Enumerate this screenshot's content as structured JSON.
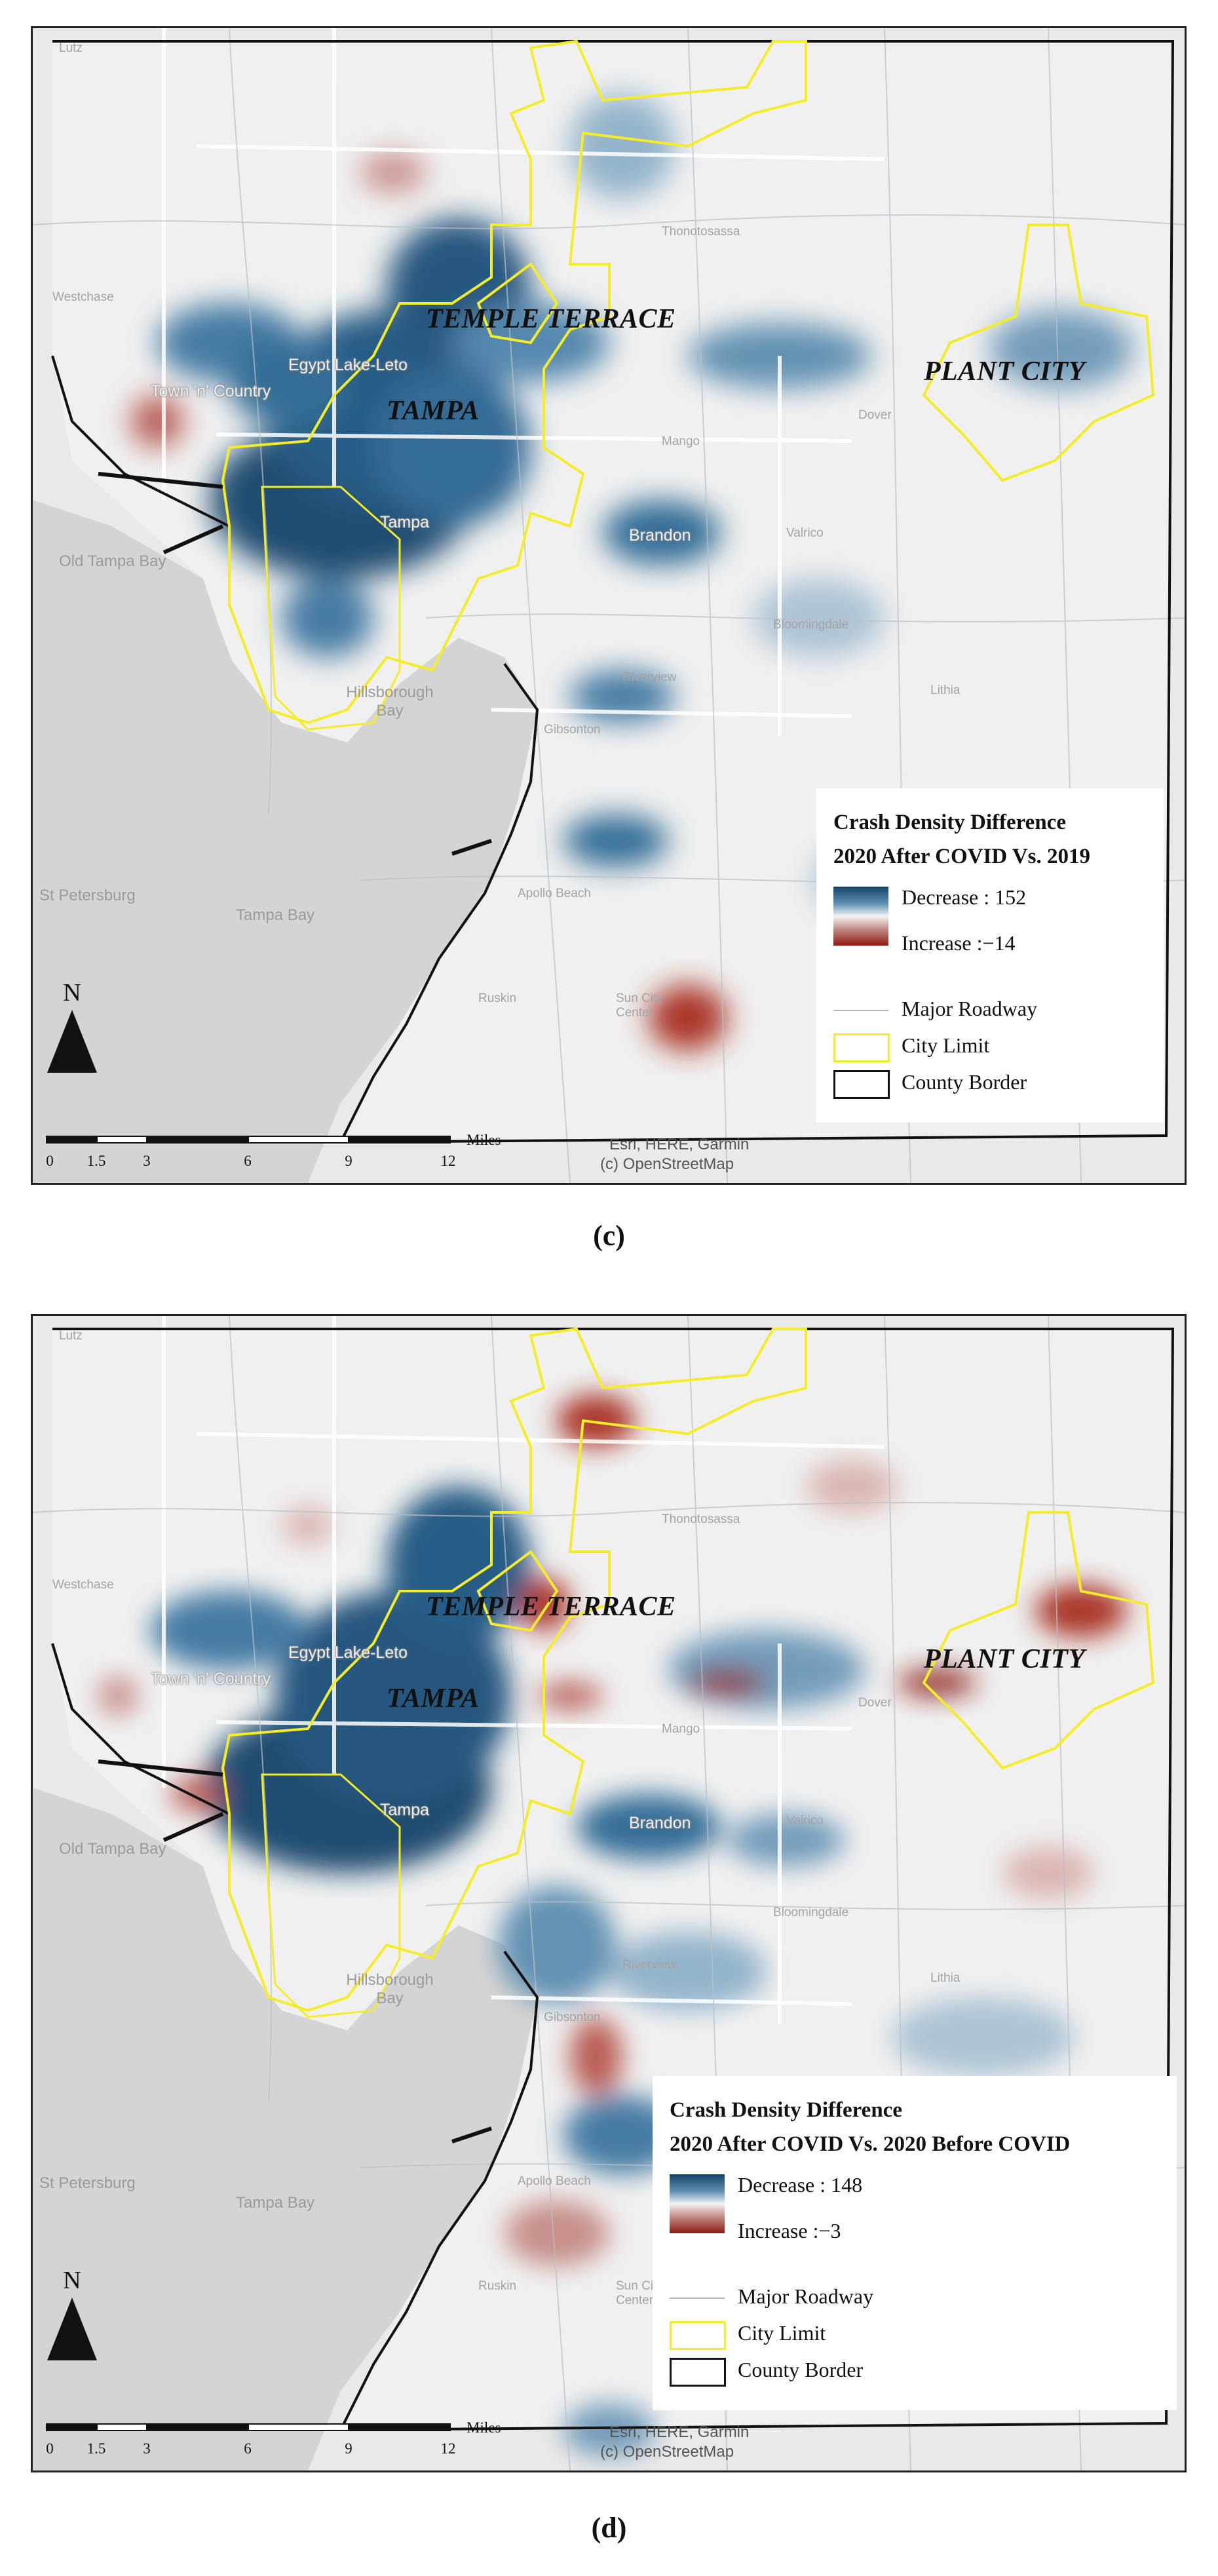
{
  "panels": [
    {
      "id": "c",
      "caption": "(c)",
      "legend": {
        "title_line1": "Crash Density Difference",
        "title_line2": "2020 After COVID Vs. 2019",
        "decrease_label": "Decrease : 152",
        "increase_label": "Increase :−14",
        "decrease_value": 152,
        "increase_value": -14,
        "major_roadway": "Major Roadway",
        "city_limit": "City Limit",
        "county_border": "County Border",
        "colors": {
          "decrease": "#12446b",
          "increase": "#8b1a12",
          "city_limit": "#f5ec28",
          "county_border": "#111111"
        }
      },
      "city_labels": [
        "TEMPLE TERRACE",
        "TAMPA",
        "PLANT CITY"
      ],
      "place_labels": {
        "egypt_lake": "Egypt Lake-Leto",
        "town_country": "Town 'n' Country",
        "tampa": "Tampa",
        "brandon": "Brandon",
        "mango": "Mango",
        "valrico": "Valrico",
        "dover": "Dover",
        "bloomingdale": "Bloomingdale",
        "riverview": "Riverview",
        "gibsonton": "Gibsonton",
        "lithia": "Lithia",
        "hillsborough_bay": "Hillsborough Bay",
        "old_tampa_bay": "Old Tampa Bay",
        "tampa_bay": "Tampa Bay",
        "st_petersburg": "St Petersburg",
        "apollo_beach": "Apollo Beach",
        "ruskin": "Ruskin",
        "sun_city_center": "Sun City Center",
        "thonotosassa": "Thonotosassa",
        "lutz": "Lutz",
        "westchase": "Westchase"
      },
      "north_label": "N",
      "scalebar": {
        "ticks": [
          "0",
          "1.5",
          "3",
          "6",
          "9",
          "12"
        ],
        "unit": "Miles"
      },
      "credits": {
        "line1": "Esri, HERE, Garmin",
        "line2": "(c) OpenStreetMap"
      }
    },
    {
      "id": "d",
      "caption": "(d)",
      "legend": {
        "title_line1": "Crash Density Difference",
        "title_line2": "2020 After COVID Vs. 2020 Before COVID",
        "decrease_label": "Decrease : 148",
        "increase_label": "Increase :−3",
        "decrease_value": 148,
        "increase_value": -3,
        "major_roadway": "Major Roadway",
        "city_limit": "City Limit",
        "county_border": "County Border",
        "colors": {
          "decrease": "#12446b",
          "increase": "#8b1a12",
          "city_limit": "#f5ec28",
          "county_border": "#111111"
        }
      },
      "city_labels": [
        "TEMPLE TERRACE",
        "TAMPA",
        "PLANT CITY"
      ],
      "place_labels": {
        "egypt_lake": "Egypt Lake-Leto",
        "town_country": "Town 'n' Country",
        "tampa": "Tampa",
        "brandon": "Brandon",
        "mango": "Mango",
        "valrico": "Valrico",
        "dover": "Dover",
        "bloomingdale": "Bloomingdale",
        "riverview": "Riverview",
        "gibsonton": "Gibsonton",
        "lithia": "Lithia",
        "hillsborough_bay": "Hillsborough Bay",
        "old_tampa_bay": "Old Tampa Bay",
        "tampa_bay": "Tampa Bay",
        "st_petersburg": "St Petersburg",
        "apollo_beach": "Apollo Beach",
        "ruskin": "Ruskin",
        "sun_city_center": "Sun City Center",
        "thonotosassa": "Thonotosassa",
        "lutz": "Lutz",
        "westchase": "Westchase"
      },
      "north_label": "N",
      "scalebar": {
        "ticks": [
          "0",
          "1.5",
          "3",
          "6",
          "9",
          "12"
        ],
        "unit": "Miles"
      },
      "credits": {
        "line1": "Esri, HERE, Garmin",
        "line2": "(c) OpenStreetMap"
      }
    }
  ]
}
